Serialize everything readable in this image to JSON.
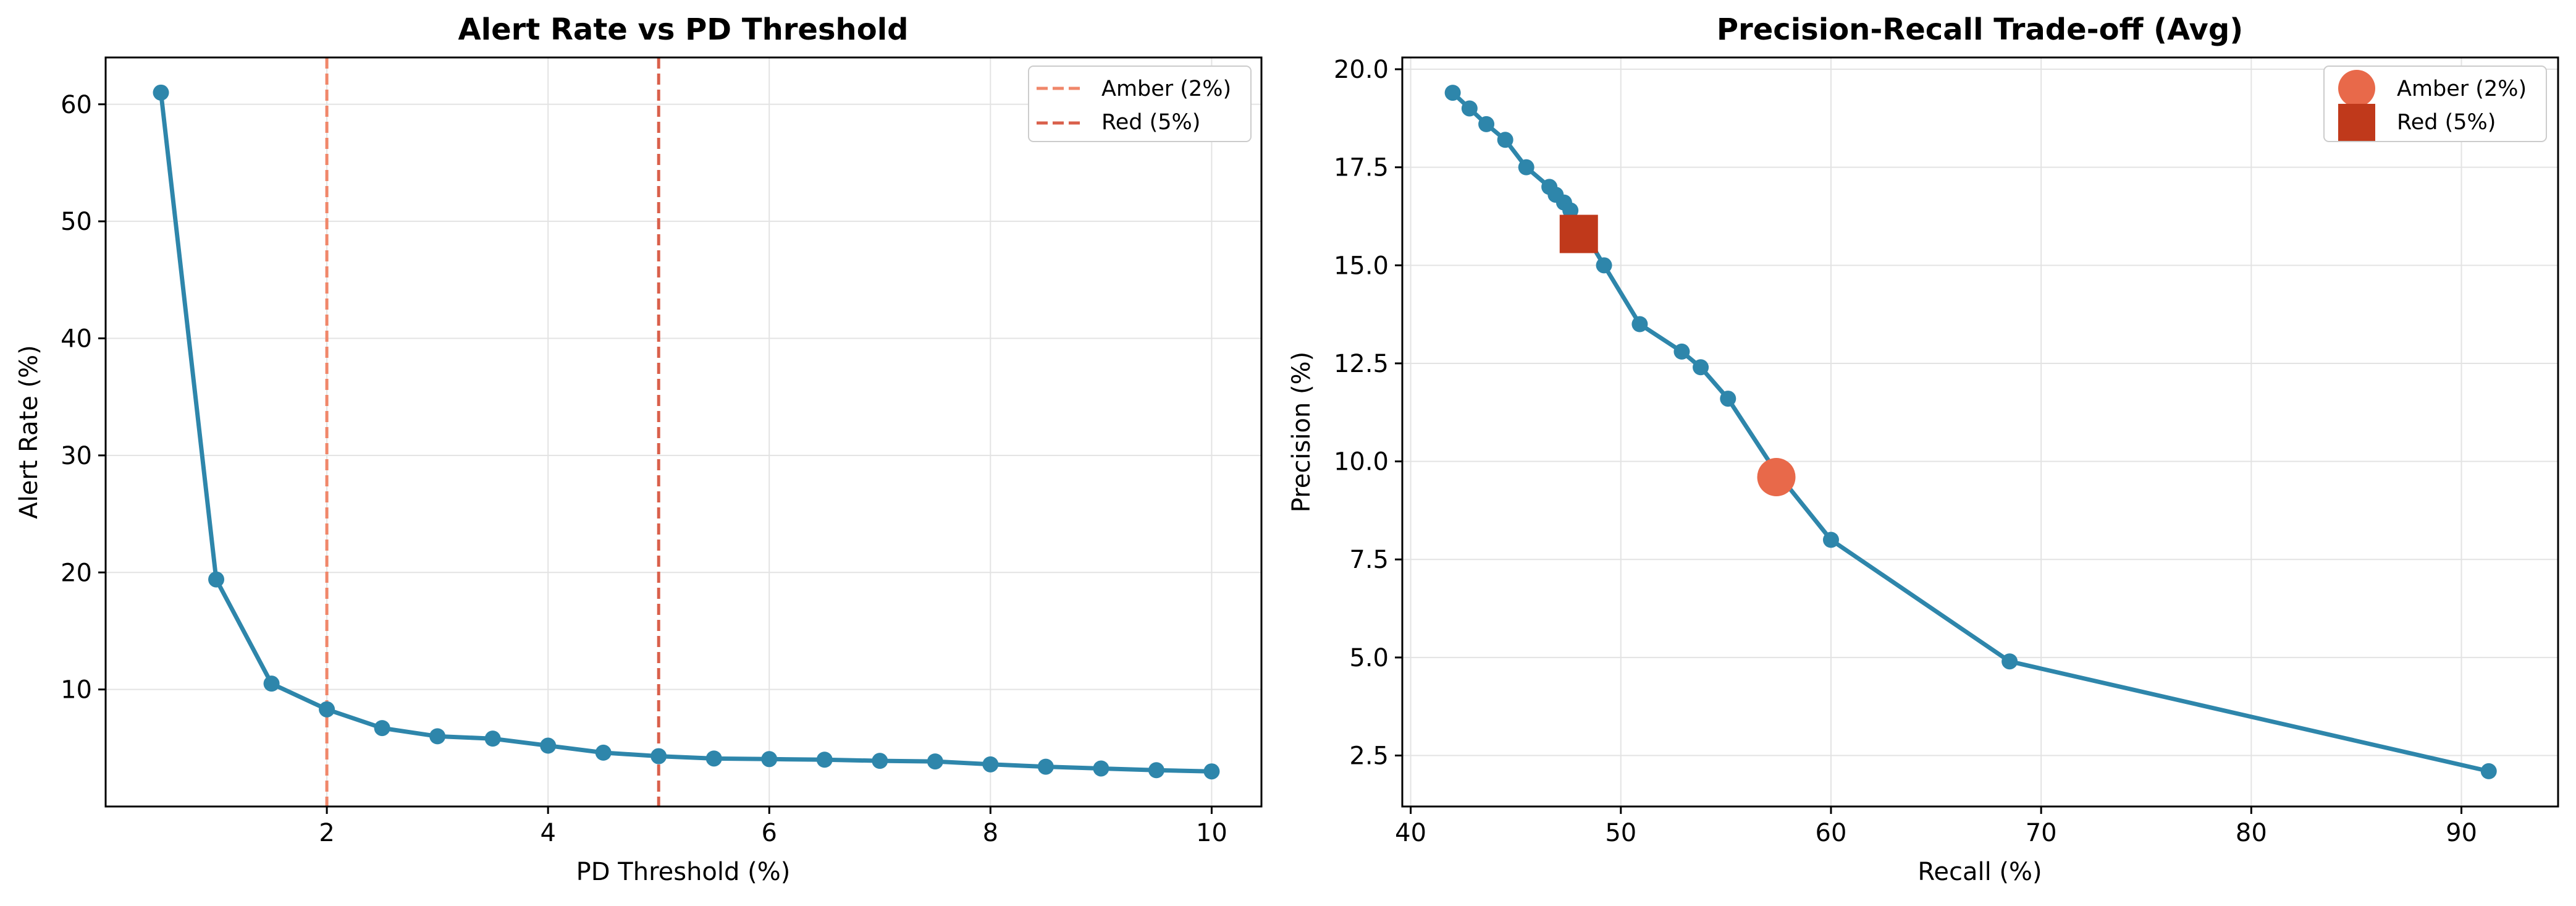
{
  "chart_data": [
    {
      "type": "line",
      "title": "Alert Rate vs PD Threshold",
      "xlabel": "PD Threshold (%)",
      "ylabel": "Alert Rate (%)",
      "xlim": [
        0.0,
        10.45
      ],
      "ylim": [
        0.0,
        64.0
      ],
      "xticks": [
        2,
        4,
        6,
        8,
        10
      ],
      "yticks": [
        10,
        20,
        30,
        40,
        50,
        60
      ],
      "grid": true,
      "legend_position": "top-right",
      "series": [
        {
          "color": "#2e86ab",
          "marker": "circle",
          "x": [
            0.5,
            1.0,
            1.5,
            2.0,
            2.5,
            3.0,
            3.5,
            4.0,
            4.5,
            5.0,
            5.5,
            6.0,
            6.5,
            7.0,
            7.5,
            8.0,
            8.5,
            9.0,
            9.5,
            10.0
          ],
          "y": [
            61.0,
            19.4,
            10.5,
            8.3,
            6.7,
            6.0,
            5.8,
            5.2,
            4.6,
            4.3,
            4.1,
            4.05,
            4.0,
            3.9,
            3.85,
            3.6,
            3.4,
            3.25,
            3.1,
            3.0
          ]
        }
      ],
      "reference_lines": [
        {
          "name": "Amber (2%)",
          "x": 2,
          "color": "#f0876a",
          "style": "dashed"
        },
        {
          "name": "Red (5%)",
          "x": 5,
          "color": "#d9604b",
          "style": "dashed"
        }
      ]
    },
    {
      "type": "line",
      "title": "Precision-Recall Trade-off (Avg)",
      "xlabel": "Recall (%)",
      "ylabel": "Precision (%)",
      "xlim": [
        39.6,
        94.6
      ],
      "ylim": [
        1.2,
        20.3
      ],
      "xticks": [
        40,
        50,
        60,
        70,
        80,
        90
      ],
      "yticks": [
        2.5,
        5.0,
        7.5,
        10.0,
        12.5,
        15.0,
        17.5,
        20.0
      ],
      "ytick_labels": [
        "2.5",
        "5.0",
        "7.5",
        "10.0",
        "12.5",
        "15.0",
        "17.5",
        "20.0"
      ],
      "grid": true,
      "legend_position": "top-right",
      "series": [
        {
          "color": "#2e86ab",
          "marker": "circle",
          "x": [
            42.0,
            42.8,
            43.6,
            44.5,
            45.5,
            46.6,
            46.9,
            47.3,
            47.6,
            47.9,
            48.3,
            49.2,
            50.9,
            52.9,
            53.8,
            55.1,
            57.3,
            60.0,
            68.5,
            91.3
          ],
          "y": [
            19.4,
            19.0,
            18.6,
            18.2,
            17.5,
            17.0,
            16.8,
            16.6,
            16.4,
            16.0,
            15.8,
            15.0,
            13.5,
            12.8,
            12.4,
            11.6,
            9.8,
            8.0,
            4.9,
            2.1
          ]
        }
      ],
      "highlight_points": [
        {
          "name": "Amber (2%)",
          "x": 57.4,
          "y": 9.6,
          "color": "#e8694a",
          "marker": "circle"
        },
        {
          "name": "Red (5%)",
          "x": 48.0,
          "y": 15.8,
          "color": "#c0391b",
          "marker": "square"
        }
      ]
    }
  ]
}
